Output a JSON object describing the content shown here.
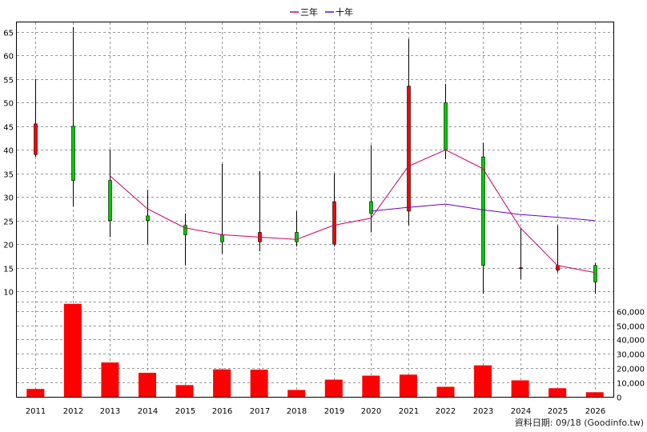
{
  "chart_data": {
    "type": "candlestick+bar",
    "legend": [
      {
        "label": "三年",
        "color": "#cc0066"
      },
      {
        "label": "十年",
        "color": "#6600cc"
      }
    ],
    "years": [
      "2011",
      "2012",
      "2013",
      "2014",
      "2015",
      "2016",
      "2017",
      "2018",
      "2019",
      "2020",
      "2021",
      "2022",
      "2023",
      "2024",
      "2025",
      "2026"
    ],
    "price_axis": {
      "ylim": [
        8,
        67
      ],
      "ticks": [
        10,
        15,
        20,
        25,
        30,
        35,
        40,
        45,
        50,
        55,
        60,
        65
      ]
    },
    "candles": [
      {
        "year": "2011",
        "open": 39,
        "high": 55,
        "low": 38.5,
        "close": 45.5
      },
      {
        "year": "2012",
        "open": 45,
        "high": 66,
        "low": 28,
        "close": 33.5
      },
      {
        "year": "2013",
        "open": 33.5,
        "high": 40,
        "low": 21.5,
        "close": 25
      },
      {
        "year": "2014",
        "open": 26,
        "high": 31.5,
        "low": 20,
        "close": 25
      },
      {
        "year": "2015",
        "open": 24,
        "high": 26.5,
        "low": 15.5,
        "close": 22
      },
      {
        "year": "2016",
        "open": 22,
        "high": 37,
        "low": 18,
        "close": 20.5
      },
      {
        "year": "2017",
        "open": 20.5,
        "high": 35.5,
        "low": 18.5,
        "close": 22.5
      },
      {
        "year": "2018",
        "open": 22.5,
        "high": 27,
        "low": 19.5,
        "close": 20.5
      },
      {
        "year": "2019",
        "open": 20,
        "high": 35,
        "low": 19.5,
        "close": 29
      },
      {
        "year": "2020",
        "open": 29,
        "high": 41,
        "low": 22.5,
        "close": 26.5
      },
      {
        "year": "2021",
        "open": 27,
        "high": 63.5,
        "low": 24,
        "close": 53.5
      },
      {
        "year": "2022",
        "open": 50,
        "high": 54,
        "low": 38,
        "close": 40
      },
      {
        "year": "2023",
        "open": 38.5,
        "high": 41.5,
        "low": 9.5,
        "close": 15.5
      },
      {
        "year": "2024",
        "open": 15,
        "high": 23.5,
        "low": 12.5,
        "close": 15
      },
      {
        "year": "2025",
        "open": 14.5,
        "high": 24,
        "low": 14,
        "close": 15.5
      },
      {
        "year": "2026",
        "open": 15.5,
        "high": 16,
        "low": 9.5,
        "close": 12
      }
    ],
    "series": [
      {
        "name": "三年",
        "color": "#cc0066",
        "x": [
          "2013",
          "2014",
          "2015",
          "2016",
          "2017",
          "2018",
          "2019",
          "2020",
          "2021",
          "2022",
          "2023",
          "2024",
          "2025",
          "2026"
        ],
        "values": [
          34.5,
          27.5,
          23.5,
          22,
          21.5,
          21,
          24,
          25.5,
          36.5,
          40,
          36,
          23.5,
          15.5,
          14
        ]
      },
      {
        "name": "十年",
        "color": "#6600cc",
        "x": [
          "2020",
          "2021",
          "2022",
          "2023",
          "2024",
          "2025",
          "2026"
        ],
        "values": [
          27,
          27.8,
          28.5,
          27.3,
          26.3,
          25.7,
          25
        ]
      }
    ],
    "volume_axis": {
      "ylim": [
        0,
        66000
      ],
      "ticks": [
        "0",
        "10,000",
        "20,000",
        "30,000",
        "40,000",
        "50,000",
        "60,000"
      ]
    },
    "volume": [
      5500,
      65000,
      24000,
      16800,
      8200,
      19200,
      19000,
      4800,
      12000,
      14800,
      15500,
      7000,
      22000,
      11500,
      6000,
      3200
    ],
    "footer": "資料日期: 09/18  (Goodinfo.tw)"
  }
}
